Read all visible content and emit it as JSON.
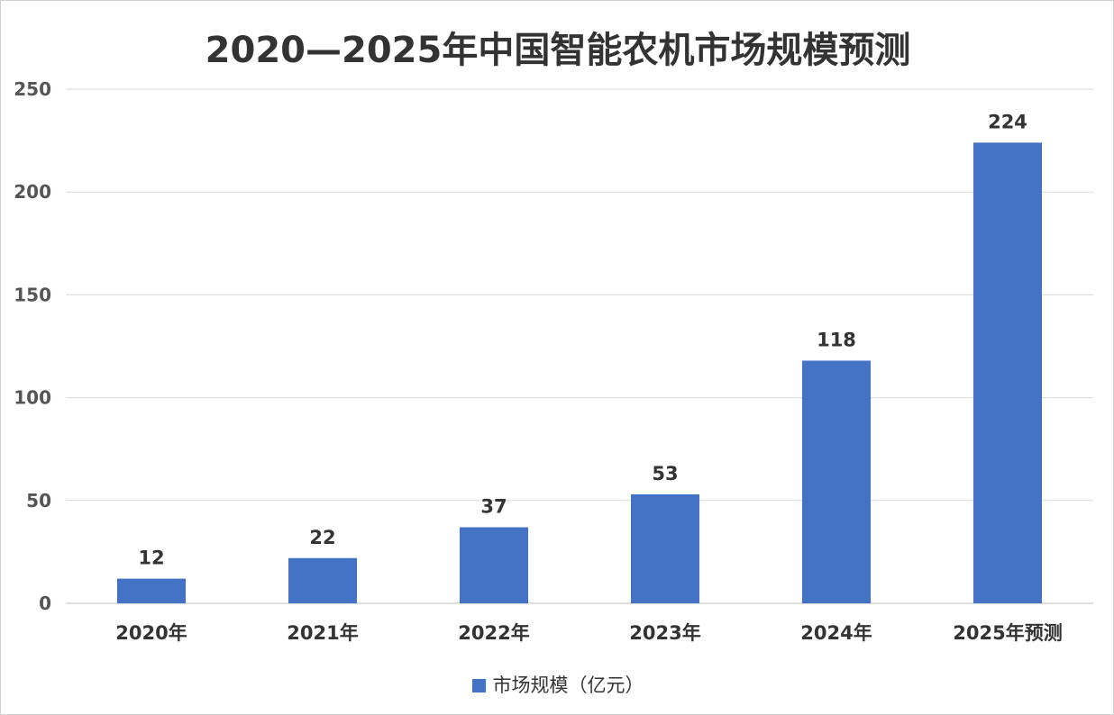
{
  "chart_data": {
    "type": "bar",
    "title": "2020—2025年中国智能农机市场规模预测",
    "categories": [
      "2020年",
      "2021年",
      "2022年",
      "2023年",
      "2024年",
      "2025年预测"
    ],
    "series": [
      {
        "name": "市场规模（亿元）",
        "values": [
          12,
          22,
          37,
          53,
          118,
          224
        ],
        "color": "#4472C4"
      }
    ],
    "ylim": [
      0,
      250
    ],
    "yticks": [
      0,
      50,
      100,
      150,
      200,
      250
    ],
    "grid": true,
    "legend_position": "bottom"
  }
}
